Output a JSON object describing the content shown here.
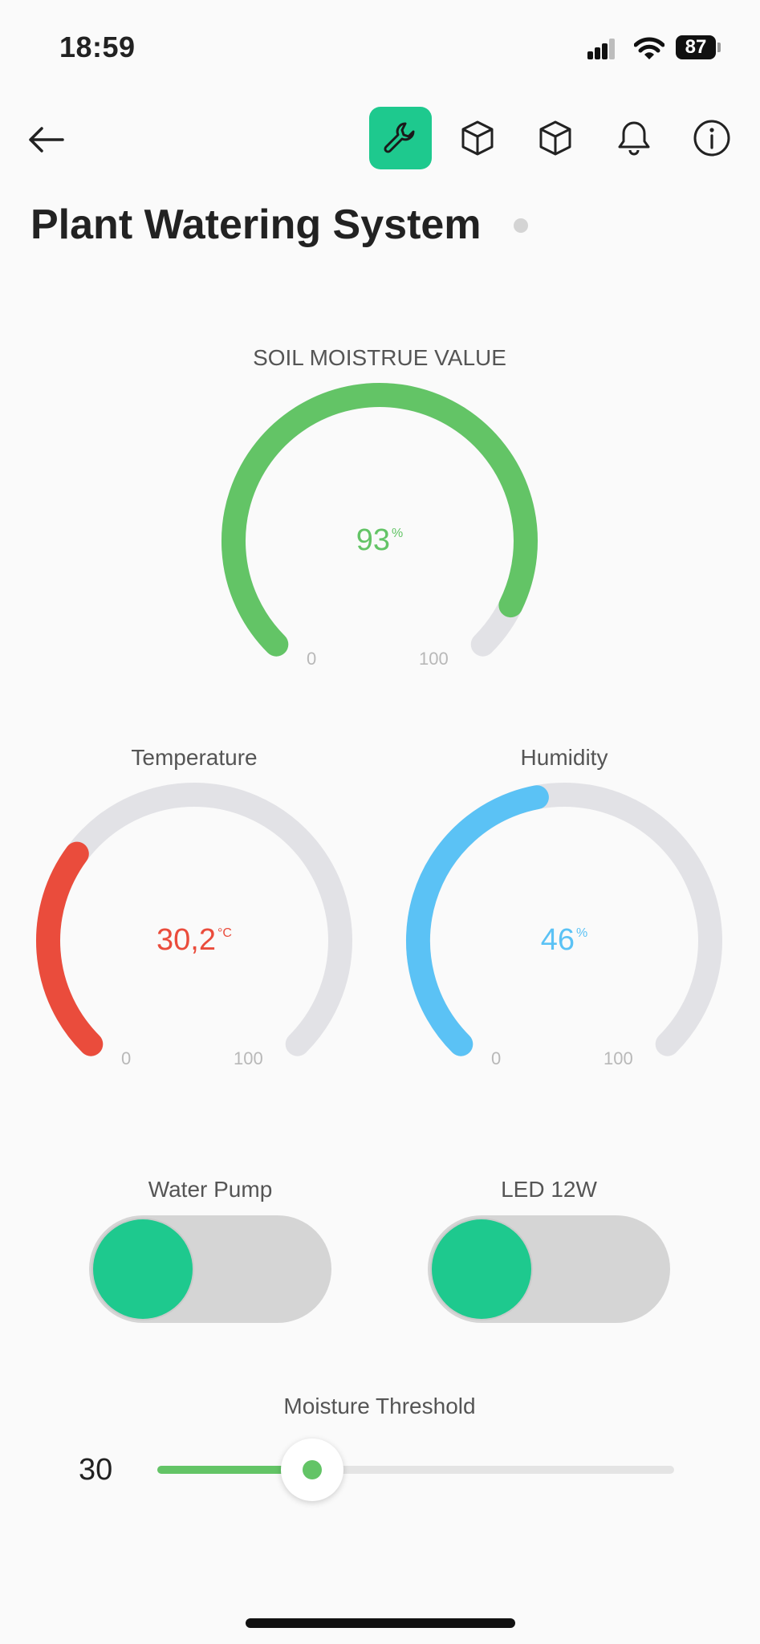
{
  "status_bar": {
    "time": "18:59",
    "battery": "87"
  },
  "toolbar": {
    "icons": [
      "back-arrow-icon",
      "wrench-icon",
      "cube-icon",
      "cube-icon",
      "bell-icon",
      "info-icon"
    ],
    "active_color": "#1ec98e"
  },
  "device": {
    "title": "Plant Watering System",
    "online": false
  },
  "soil_gauge": {
    "label": "SOIL MOISTRUE VALUE",
    "value": "93",
    "unit": "%",
    "min": "0",
    "max": "100",
    "level": 93,
    "color": "#63c466"
  },
  "temp_gauge": {
    "label": "Temperature",
    "value": "30,2",
    "unit": "°C",
    "min": "0",
    "max": "100",
    "level": 30.2,
    "color": "#ea4c3c"
  },
  "humidity_gauge": {
    "label": "Humidity",
    "value": "46",
    "unit": "%",
    "min": "0",
    "max": "100",
    "level": 46,
    "color": "#5bc2f5"
  },
  "water_pump": {
    "label": "Water Pump",
    "state": "off"
  },
  "led": {
    "label": "LED 12W",
    "state": "off"
  },
  "threshold": {
    "label": "Moisture Threshold",
    "value": "30",
    "min": 0,
    "max": 100,
    "level": 30
  }
}
